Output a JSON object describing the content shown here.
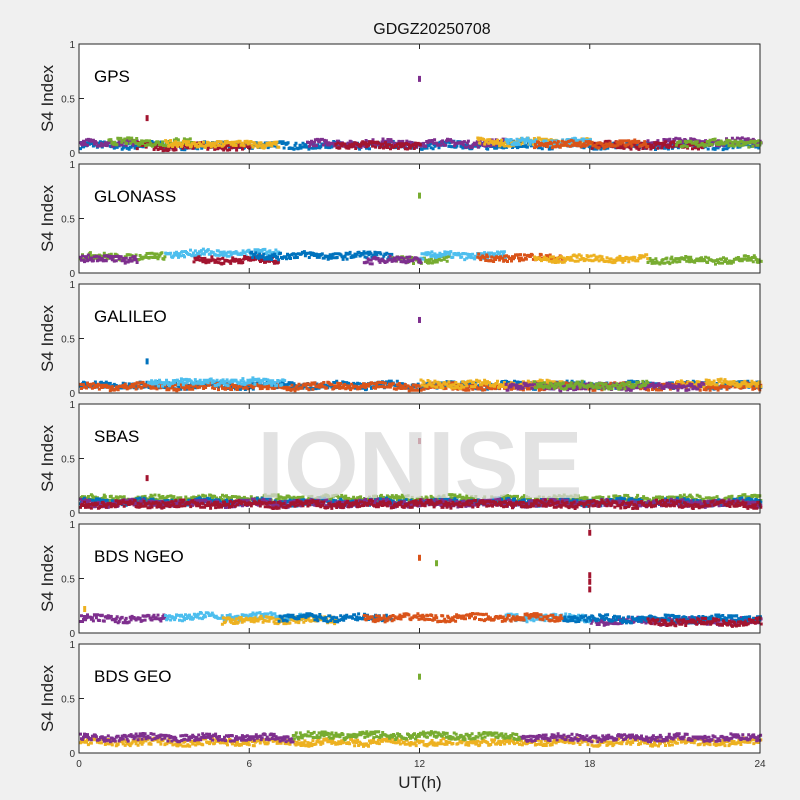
{
  "chart_data": {
    "type": "scatter",
    "title": "GDGZ20250708",
    "xlabel": "UT(h)",
    "ylabel": "S4 Index",
    "xlim": [
      0,
      24
    ],
    "ylim": [
      0,
      1
    ],
    "xticks": [
      "0",
      "6",
      "12",
      "18",
      "24"
    ],
    "yticks": [
      "0",
      "0.5",
      "1"
    ],
    "watermark": "IONISE",
    "colors": [
      "#0072BD",
      "#D95319",
      "#EDB120",
      "#7E2F8E",
      "#77AC30",
      "#4DBEEE",
      "#A2142F"
    ],
    "panels": [
      {
        "label": "GPS",
        "series": [
          {
            "color": 0,
            "segments": [
              [
                0,
                24,
                0.07
              ]
            ]
          },
          {
            "color": 3,
            "segments": [
              [
                0,
                2,
                0.09
              ],
              [
                8,
                15,
                0.09
              ],
              [
                20,
                24,
                0.1
              ]
            ]
          },
          {
            "color": 6,
            "segments": [
              [
                2,
                6,
                0.06
              ],
              [
                9,
                12,
                0.07
              ],
              [
                18,
                22,
                0.07
              ]
            ]
          },
          {
            "color": 4,
            "segments": [
              [
                1,
                4,
                0.1
              ],
              [
                21,
                24,
                0.09
              ]
            ]
          },
          {
            "color": 2,
            "segments": [
              [
                3,
                7,
                0.08
              ],
              [
                14,
                18,
                0.1
              ]
            ]
          },
          {
            "color": 5,
            "segments": [
              [
                15,
                18,
                0.1
              ]
            ]
          },
          {
            "color": 1,
            "segments": [
              [
                16,
                20,
                0.08
              ]
            ]
          }
        ],
        "outliers": [
          [
            2.4,
            0.32,
            6
          ],
          [
            12,
            0.68,
            3
          ]
        ]
      },
      {
        "label": "GLONASS",
        "series": [
          {
            "color": 4,
            "segments": [
              [
                0,
                3,
                0.15
              ],
              [
                11,
                13,
                0.12
              ],
              [
                20,
                24,
                0.12
              ]
            ]
          },
          {
            "color": 5,
            "segments": [
              [
                3,
                7,
                0.18
              ],
              [
                12,
                15,
                0.16
              ]
            ]
          },
          {
            "color": 6,
            "segments": [
              [
                4,
                7,
                0.12
              ]
            ]
          },
          {
            "color": 0,
            "segments": [
              [
                6,
                11,
                0.16
              ]
            ]
          },
          {
            "color": 1,
            "segments": [
              [
                14,
                17,
                0.14
              ]
            ]
          },
          {
            "color": 2,
            "segments": [
              [
                16,
                20,
                0.13
              ]
            ]
          },
          {
            "color": 3,
            "segments": [
              [
                0,
                2,
                0.13
              ],
              [
                10,
                12,
                0.12
              ]
            ]
          }
        ],
        "outliers": [
          [
            12,
            0.71,
            4
          ]
        ]
      },
      {
        "label": "GALILEO",
        "series": [
          {
            "color": 0,
            "segments": [
              [
                0,
                24,
                0.07
              ]
            ]
          },
          {
            "color": 1,
            "segments": [
              [
                0,
                24,
                0.06
              ]
            ]
          },
          {
            "color": 5,
            "segments": [
              [
                2.4,
                7.2,
                0.1
              ]
            ]
          },
          {
            "color": 2,
            "segments": [
              [
                12,
                17,
                0.08
              ],
              [
                21,
                24,
                0.09
              ]
            ]
          },
          {
            "color": 3,
            "segments": [
              [
                15,
                22,
                0.06
              ]
            ]
          },
          {
            "color": 4,
            "segments": [
              [
                16,
                20,
                0.07
              ]
            ]
          }
        ],
        "outliers": [
          [
            2.4,
            0.29,
            0
          ],
          [
            12,
            0.67,
            3
          ]
        ]
      },
      {
        "label": "SBAS",
        "series": [
          {
            "color": 4,
            "segments": [
              [
                0,
                24,
                0.13
              ]
            ]
          },
          {
            "color": 0,
            "segments": [
              [
                0,
                24,
                0.1
              ]
            ]
          },
          {
            "color": 3,
            "segments": [
              [
                0,
                24,
                0.09
              ]
            ]
          },
          {
            "color": 6,
            "segments": [
              [
                0,
                24,
                0.08
              ]
            ]
          }
        ],
        "outliers": [
          [
            2.4,
            0.32,
            6
          ],
          [
            12,
            0.66,
            6
          ]
        ]
      },
      {
        "label": "BDS NGEO",
        "series": [
          {
            "color": 3,
            "segments": [
              [
                0,
                3,
                0.13
              ],
              [
                18,
                24,
                0.11
              ]
            ]
          },
          {
            "color": 5,
            "segments": [
              [
                3,
                8,
                0.15
              ],
              [
                15,
                18,
                0.14
              ]
            ]
          },
          {
            "color": 2,
            "segments": [
              [
                5,
                9,
                0.12
              ]
            ]
          },
          {
            "color": 0,
            "segments": [
              [
                7,
                11,
                0.14
              ],
              [
                17,
                24,
                0.13
              ]
            ]
          },
          {
            "color": 1,
            "segments": [
              [
                10,
                17,
                0.14
              ]
            ]
          },
          {
            "color": 6,
            "segments": [
              [
                20,
                24,
                0.1
              ]
            ]
          }
        ],
        "outliers": [
          [
            0.2,
            0.22,
            2
          ],
          [
            12,
            0.69,
            1
          ],
          [
            12.6,
            0.64,
            4
          ],
          [
            18,
            0.92,
            6
          ],
          [
            18,
            0.53,
            6
          ],
          [
            18,
            0.47,
            6
          ],
          [
            18,
            0.4,
            6
          ]
        ]
      },
      {
        "label": "BDS GEO",
        "series": [
          {
            "color": 2,
            "segments": [
              [
                0,
                24,
                0.1
              ]
            ]
          },
          {
            "color": 3,
            "segments": [
              [
                0,
                7.5,
                0.14
              ],
              [
                15.5,
                24,
                0.14
              ]
            ]
          },
          {
            "color": 4,
            "segments": [
              [
                7.5,
                15.5,
                0.16
              ]
            ]
          }
        ],
        "outliers": [
          [
            12,
            0.7,
            4
          ]
        ]
      }
    ]
  }
}
